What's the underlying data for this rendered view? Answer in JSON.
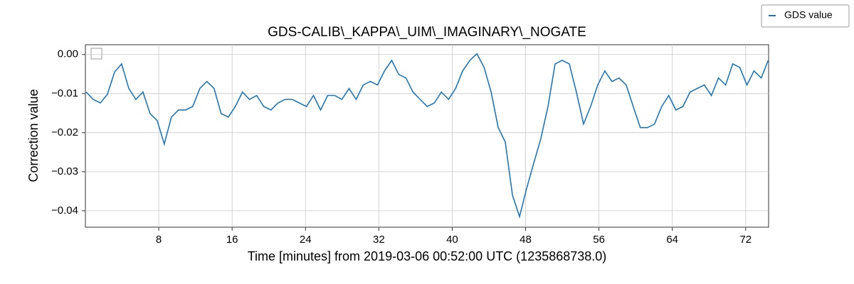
{
  "chart_data": {
    "type": "line",
    "title": "GDS-CALIB\\_KAPPA\\_UIM\\_IMAGINARY\\_NOGATE",
    "xlabel": "Time [minutes] from 2019-03-06 00:52:00 UTC (1235868738.0)",
    "ylabel": "Correction value",
    "x": [
      0.08,
      0.85,
      1.63,
      2.4,
      3.18,
      3.95,
      4.73,
      5.5,
      6.28,
      7.05,
      7.83,
      8.6,
      9.38,
      10.15,
      10.93,
      11.7,
      12.48,
      13.25,
      14.03,
      14.8,
      15.58,
      16.35,
      17.13,
      17.9,
      18.68,
      19.45,
      20.23,
      21.0,
      21.77,
      22.55,
      23.32,
      24.1,
      24.87,
      25.65,
      26.42,
      27.2,
      27.97,
      28.75,
      29.52,
      30.3,
      31.07,
      31.85,
      32.62,
      33.4,
      34.17,
      34.95,
      35.72,
      36.5,
      37.27,
      38.05,
      38.82,
      39.6,
      40.37,
      41.14,
      41.92,
      42.69,
      43.47,
      44.24,
      45.02,
      45.79,
      46.57,
      47.34,
      48.12,
      48.89,
      49.67,
      50.44,
      51.22,
      51.99,
      52.77,
      53.54,
      54.32,
      55.09,
      55.87,
      56.64,
      57.42,
      58.19,
      58.97,
      59.74,
      60.51,
      61.29,
      62.06,
      62.84,
      63.61,
      64.39,
      65.16,
      65.94,
      66.71,
      67.49,
      68.26,
      69.04,
      69.81,
      70.59,
      71.36,
      72.14,
      72.91,
      73.69,
      74.46
    ],
    "series": [
      {
        "name": "GDS value",
        "color": "#1f77b4",
        "values": [
          -0.0096,
          -0.0115,
          -0.0124,
          -0.0102,
          -0.0045,
          -0.0024,
          -0.0087,
          -0.0115,
          -0.0096,
          -0.0151,
          -0.0169,
          -0.0229,
          -0.016,
          -0.0142,
          -0.0142,
          -0.0133,
          -0.0087,
          -0.0069,
          -0.0087,
          -0.0151,
          -0.016,
          -0.0133,
          -0.0096,
          -0.0115,
          -0.0105,
          -0.0133,
          -0.0142,
          -0.0124,
          -0.0115,
          -0.0115,
          -0.0124,
          -0.0133,
          -0.0105,
          -0.0142,
          -0.0105,
          -0.0105,
          -0.0115,
          -0.0087,
          -0.0115,
          -0.0078,
          -0.0069,
          -0.0078,
          -0.0042,
          -0.0015,
          -0.0051,
          -0.006,
          -0.0096,
          -0.0115,
          -0.0133,
          -0.0124,
          -0.0096,
          -0.0115,
          -0.0087,
          -0.0042,
          -0.0015,
          0.0002,
          -0.0033,
          -0.0096,
          -0.0187,
          -0.0224,
          -0.036,
          -0.0415,
          -0.0342,
          -0.0278,
          -0.0215,
          -0.0133,
          -0.0024,
          -0.0015,
          -0.0024,
          -0.0096,
          -0.0178,
          -0.0133,
          -0.0078,
          -0.0042,
          -0.0069,
          -0.006,
          -0.0078,
          -0.0133,
          -0.0187,
          -0.0187,
          -0.0178,
          -0.0133,
          -0.0105,
          -0.0142,
          -0.0133,
          -0.0096,
          -0.0087,
          -0.0078,
          -0.0105,
          -0.006,
          -0.0078,
          -0.0024,
          -0.0033,
          -0.0078,
          -0.0042,
          -0.006,
          -0.0015
        ]
      }
    ],
    "xlim": [
      0,
      74.5
    ],
    "ylim": [
      -0.0442,
      0.0025
    ],
    "xticks": [
      8,
      16,
      24,
      32,
      40,
      48,
      56,
      64,
      72
    ],
    "yticks": [
      {
        "value": -0.04,
        "label": "−0.04"
      },
      {
        "value": -0.03,
        "label": "−0.03"
      },
      {
        "value": -0.02,
        "label": "−0.02"
      },
      {
        "value": -0.01,
        "label": "−0.01"
      },
      {
        "value": 0,
        "label": "0.00"
      }
    ],
    "grid": true
  }
}
